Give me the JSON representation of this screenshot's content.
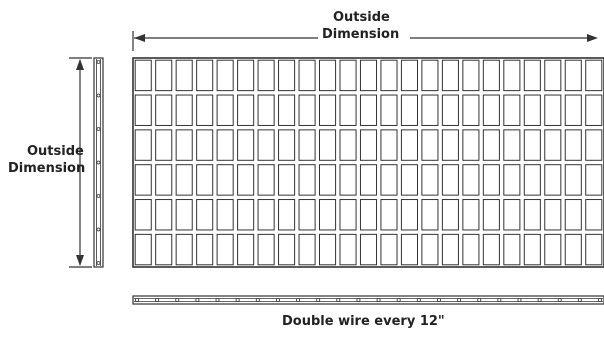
{
  "labels": {
    "top_line1": "Outside",
    "top_line2": "Dimension",
    "side_line1": "Outside",
    "side_line2": "Dimension",
    "bottom": "Double wire every 12\""
  },
  "grid": {
    "columns": 23,
    "rows": 6
  },
  "colors": {
    "line": "#333333",
    "text": "#222222"
  }
}
